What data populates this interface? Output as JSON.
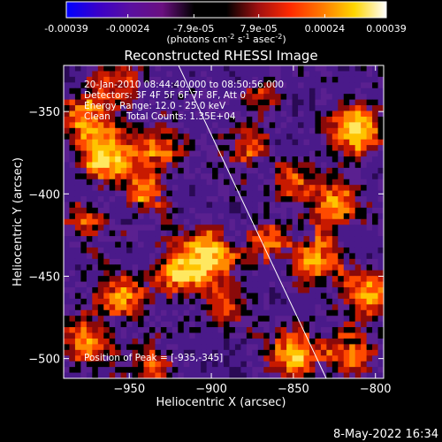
{
  "colorbar": {
    "ticks": [
      "-0.00039",
      "-0.00024",
      "-7.9e-05",
      "7.9e-05",
      "0.00024",
      "0.00039"
    ],
    "tick_values": [
      -0.00039,
      -0.00024,
      -7.9e-05,
      7.9e-05,
      0.00024,
      0.00039
    ],
    "range": [
      -0.00039,
      0.00039
    ],
    "unit_label": "(photons cm",
    "unit_exp1": "-2",
    "unit_mid": " s",
    "unit_exp2": "-1",
    "unit_end": " asec",
    "unit_exp3": "-2",
    "unit_close": ")",
    "colormap": [
      "#0000ff",
      "#3a00c8",
      "#5a10a0",
      "#6a1080",
      "#000000",
      "#000000",
      "#a01010",
      "#ff2a00",
      "#ff7a00",
      "#ffd600",
      "#ffffff"
    ]
  },
  "chart_data": {
    "type": "heatmap",
    "title": "Reconstructed RHESSI Image",
    "xlabel": "Heliocentric X (arcsec)",
    "ylabel": "Heliocentric Y (arcsec)",
    "xlim": [
      -990,
      -795
    ],
    "ylim": [
      -512,
      -322
    ],
    "xticks": [
      -950,
      -900,
      -850,
      -800
    ],
    "xtick_labels": [
      "−950",
      "−900",
      "−850",
      "−800"
    ],
    "yticks": [
      -350,
      -400,
      -450,
      -500
    ],
    "ytick_labels": [
      "−350",
      "−400",
      "−450",
      "−500"
    ],
    "limb_line": {
      "x": [
        -920,
        -830
      ],
      "y": [
        -322,
        -512
      ]
    },
    "peak": {
      "x": -935,
      "y": -345
    },
    "blobs": [
      {
        "x": -962,
        "y": -376,
        "s": 13,
        "v": 0.9
      },
      {
        "x": -978,
        "y": -352,
        "s": 11,
        "v": 0.75
      },
      {
        "x": -905,
        "y": -440,
        "s": 13,
        "v": 1.0
      },
      {
        "x": -925,
        "y": -450,
        "s": 9,
        "v": 0.6
      },
      {
        "x": -940,
        "y": -400,
        "s": 10,
        "v": 0.55
      },
      {
        "x": -930,
        "y": -375,
        "s": 10,
        "v": 0.55
      },
      {
        "x": -880,
        "y": -372,
        "s": 10,
        "v": 0.55
      },
      {
        "x": -850,
        "y": -390,
        "s": 9,
        "v": 0.5
      },
      {
        "x": -810,
        "y": -362,
        "s": 11,
        "v": 0.95
      },
      {
        "x": -825,
        "y": -405,
        "s": 10,
        "v": 0.7
      },
      {
        "x": -835,
        "y": -440,
        "s": 11,
        "v": 0.75
      },
      {
        "x": -805,
        "y": -460,
        "s": 10,
        "v": 0.7
      },
      {
        "x": -865,
        "y": -430,
        "s": 9,
        "v": 0.55
      },
      {
        "x": -850,
        "y": -498,
        "s": 11,
        "v": 0.95
      },
      {
        "x": -815,
        "y": -498,
        "s": 10,
        "v": 0.75
      },
      {
        "x": -955,
        "y": -460,
        "s": 10,
        "v": 0.65
      },
      {
        "x": -975,
        "y": -490,
        "s": 11,
        "v": 0.75
      },
      {
        "x": -935,
        "y": -505,
        "s": 9,
        "v": 0.6
      },
      {
        "x": -890,
        "y": -470,
        "s": 9,
        "v": 0.45
      },
      {
        "x": -975,
        "y": -420,
        "s": 9,
        "v": 0.5
      },
      {
        "x": -955,
        "y": -330,
        "s": 9,
        "v": 0.6
      },
      {
        "x": -870,
        "y": -340,
        "s": 8,
        "v": 0.45
      }
    ]
  },
  "info": {
    "line1": "20-Jan-2010 08:44:40.000 to 08:50:56.000",
    "line2": "Detectors: 3F 4F 5F 6F 7F 8F, Att 0",
    "line3": "Energy Range: 12.0 - 25.0 keV",
    "line4_method": "Clean",
    "line4_counts": "Total Counts: 1.35E+04",
    "peak_label": "Position of Peak = [-935,-345]"
  },
  "footer": {
    "timestamp": "8-May-2022 16:34"
  }
}
